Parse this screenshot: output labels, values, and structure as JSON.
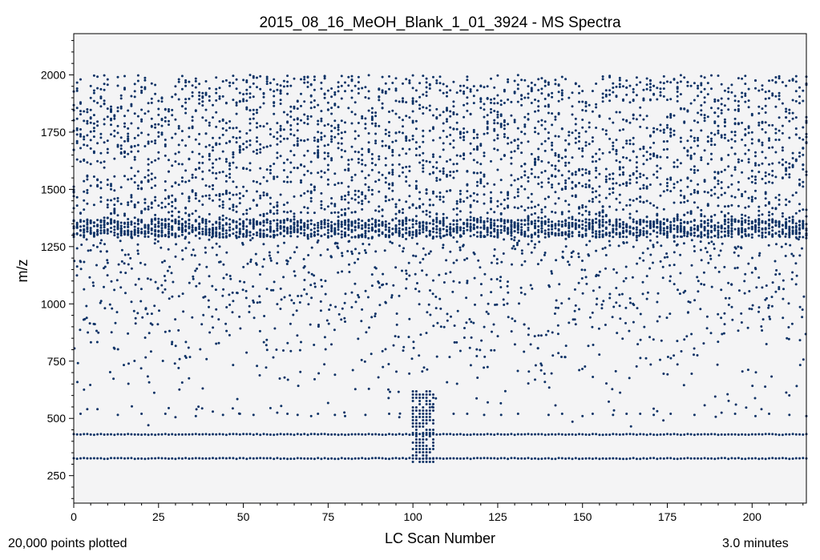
{
  "chart_data": {
    "type": "scatter",
    "title": "2015_08_16_MeOH_Blank_1_01_3924 - MS Spectra",
    "xlabel": "LC Scan Number",
    "ylabel": "m/z",
    "xlim": [
      0,
      216
    ],
    "ylim": [
      130,
      2180
    ],
    "x_ticks": [
      0,
      25,
      50,
      75,
      100,
      125,
      150,
      175,
      200
    ],
    "y_ticks": [
      250,
      500,
      750,
      1000,
      1250,
      1500,
      1750,
      2000
    ],
    "x_tick_labels": [
      "0",
      "25",
      "50",
      "75",
      "100",
      "125",
      "150",
      "175",
      "200"
    ],
    "y_tick_labels": [
      "250",
      "500",
      "750",
      "1000",
      "1250",
      "1500",
      "1750",
      "2000"
    ],
    "grid": false,
    "marker_color": "#0d3266",
    "plot_background": "#f4f4f5",
    "series": [
      {
        "description_points": "Representative sampled peaks per scan (x = scan number, y = m/z)",
        "constant_lines_mz": [
          325,
          430
        ],
        "dense_band_mz": [
          1290,
          1370
        ],
        "upper_band_mz": [
          1300,
          2000
        ],
        "scans": [
          0,
          216
        ],
        "cluster": {
          "x_range": [
            100,
            106
          ],
          "mz_range": [
            310,
            625
          ]
        },
        "sparse_region_mz": [
          440,
          1300
        ],
        "noise_peaks_500": [
          [
            2,
            520
          ],
          [
            4,
            540
          ],
          [
            7,
            540
          ],
          [
            13,
            515
          ],
          [
            20,
            520
          ],
          [
            22,
            470
          ],
          [
            27,
            520
          ],
          [
            28,
            545
          ],
          [
            30,
            505
          ],
          [
            36,
            510
          ],
          [
            41,
            530
          ],
          [
            44,
            515
          ],
          [
            49,
            520
          ],
          [
            53,
            515
          ],
          [
            58,
            545
          ],
          [
            60,
            525
          ],
          [
            63,
            520
          ],
          [
            66,
            515
          ],
          [
            70,
            510
          ],
          [
            72,
            520
          ],
          [
            77,
            515
          ],
          [
            80,
            510
          ],
          [
            86,
            515
          ],
          [
            93,
            520
          ],
          [
            96,
            505
          ],
          [
            112,
            520
          ],
          [
            116,
            520
          ],
          [
            121,
            515
          ],
          [
            126,
            515
          ],
          [
            131,
            520
          ],
          [
            140,
            515
          ],
          [
            144,
            520
          ],
          [
            150,
            510
          ],
          [
            153,
            520
          ],
          [
            159,
            515
          ],
          [
            163,
            520
          ],
          [
            167,
            520
          ],
          [
            171,
            515
          ],
          [
            176,
            520
          ],
          [
            183,
            515
          ],
          [
            191,
            525
          ],
          [
            195,
            520
          ],
          [
            201,
            510
          ],
          [
            205,
            520
          ],
          [
            211,
            515
          ],
          [
            216,
            510
          ]
        ]
      }
    ]
  },
  "footer": {
    "points_plotted": "20,000 points plotted",
    "duration": "3.0 minutes"
  }
}
